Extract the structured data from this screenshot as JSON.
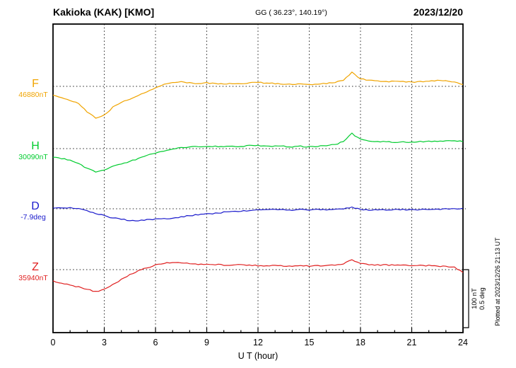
{
  "header": {
    "station": "Kakioka (KAK)  [KMO]",
    "gg": "GG ( 36.23°, 140.19°)",
    "date": "2023/12/20"
  },
  "axis": {
    "xlabel": "U T (hour)",
    "xmin": 0,
    "xmax": 24,
    "xticks": [
      0,
      3,
      6,
      9,
      12,
      15,
      18,
      21,
      24
    ]
  },
  "scale_bar": {
    "label_nt": "100 nT",
    "label_deg": "0.5 deg",
    "nT": 100,
    "deg": 0.5
  },
  "plotted_at": "Plotted at 2023/12/26 21:13 UT",
  "chart_data": {
    "type": "line",
    "title": "Kakioka (KAK) magnetogram 2023/12/20",
    "xlabel": "U T (hour)",
    "x_range_hours": [
      0,
      24
    ],
    "x_step_hours": 0.5,
    "grid": "dotted vertical every 3 hours, dotted horizontal baseline per channel",
    "series": [
      {
        "channel": "F",
        "base_label": "46880nT",
        "baseline_value": 46880,
        "unit": "nT",
        "color": "#f0a400",
        "offsets": [
          -16,
          -19,
          -24,
          -30,
          -44,
          -55,
          -50,
          -36,
          -28,
          -22,
          -15,
          -9,
          -3,
          3,
          7,
          8,
          6,
          5,
          6,
          5,
          4,
          5,
          4,
          6,
          7,
          5,
          5,
          4,
          3,
          4,
          3,
          4,
          5,
          7,
          10,
          24,
          13,
          10,
          9,
          8,
          9,
          8,
          7,
          8,
          9,
          10,
          9,
          8,
          3
        ]
      },
      {
        "channel": "H",
        "base_label": "30090nT",
        "baseline_value": 30090,
        "unit": "nT",
        "color": "#00cc2e",
        "offsets": [
          -14,
          -17,
          -20,
          -26,
          -34,
          -40,
          -37,
          -31,
          -26,
          -22,
          -17,
          -12,
          -8,
          -4,
          0,
          2,
          3,
          3,
          4,
          4,
          3,
          4,
          4,
          5,
          5,
          4,
          4,
          4,
          3,
          4,
          3,
          4,
          5,
          7,
          12,
          26,
          16,
          13,
          12,
          12,
          11,
          12,
          11,
          12,
          13,
          12,
          13,
          14,
          12
        ]
      },
      {
        "channel": "D",
        "base_label": "-7.9deg",
        "baseline_value": -7.9,
        "unit": "deg",
        "color": "#1a1acc",
        "offsets": [
          0.01,
          0.01,
          0.01,
          0.0,
          -0.02,
          -0.04,
          -0.06,
          -0.08,
          -0.09,
          -0.1,
          -0.1,
          -0.095,
          -0.09,
          -0.085,
          -0.08,
          -0.07,
          -0.06,
          -0.05,
          -0.045,
          -0.04,
          -0.03,
          -0.025,
          -0.02,
          -0.015,
          -0.01,
          -0.01,
          -0.005,
          -0.01,
          -0.01,
          -0.005,
          -0.01,
          -0.005,
          -0.01,
          -0.005,
          0.0,
          0.015,
          -0.005,
          -0.01,
          -0.008,
          -0.01,
          -0.005,
          -0.008,
          -0.01,
          -0.008,
          -0.005,
          -0.005,
          0.0,
          0.0,
          0.005
        ]
      },
      {
        "channel": "Z",
        "base_label": "35940nT",
        "baseline_value": 35940,
        "unit": "nT",
        "color": "#e02020",
        "offsets": [
          -20,
          -23,
          -27,
          -30,
          -34,
          -38,
          -34,
          -26,
          -17,
          -9,
          -2,
          3,
          8,
          11,
          12,
          12,
          10,
          9,
          9,
          9,
          8,
          8,
          8,
          8,
          7,
          7,
          7,
          6,
          6,
          7,
          6,
          7,
          7,
          8,
          10,
          17,
          11,
          9,
          8,
          8,
          8,
          8,
          7,
          7,
          7,
          6,
          6,
          4,
          -5
        ]
      }
    ]
  }
}
